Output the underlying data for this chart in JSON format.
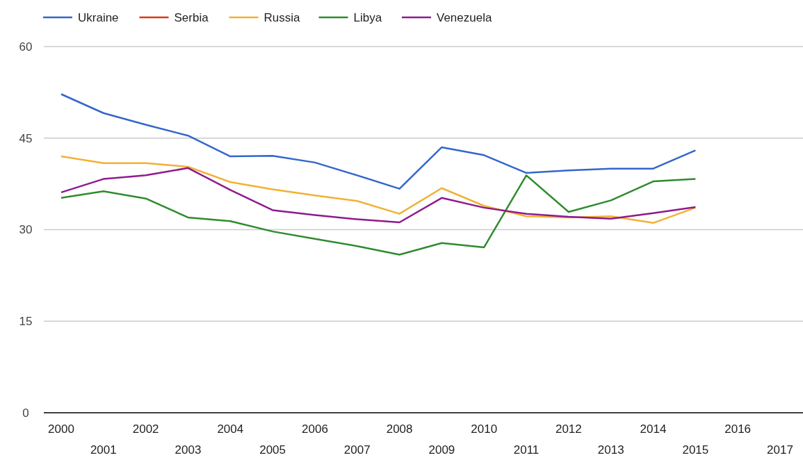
{
  "chart_data": {
    "type": "line",
    "categories": [
      "2000",
      "2001",
      "2002",
      "2003",
      "2004",
      "2005",
      "2006",
      "2007",
      "2008",
      "2009",
      "2010",
      "2011",
      "2012",
      "2013",
      "2014",
      "2015",
      "2016",
      "2017"
    ],
    "ylim": [
      0,
      60
    ],
    "yticks": [
      0,
      15,
      30,
      45,
      60
    ],
    "grid": "y",
    "legend": "top left",
    "line_style": "solid",
    "marker": "none",
    "series": [
      {
        "name": "Ukraine",
        "color": "#3366cc",
        "values": [
          52.2,
          49.1,
          47.2,
          45.4,
          42.0,
          42.1,
          41.0,
          38.9,
          36.7,
          43.5,
          42.2,
          39.3,
          39.7,
          40.0,
          40.0,
          43.0,
          null,
          null
        ]
      },
      {
        "name": "Serbia",
        "color": "#dc3912",
        "values": [
          null,
          null,
          null,
          null,
          null,
          null,
          null,
          null,
          null,
          null,
          null,
          null,
          null,
          null,
          null,
          null,
          null,
          null
        ]
      },
      {
        "name": "Russia",
        "color": "#f2b134",
        "values": [
          42.0,
          40.9,
          40.9,
          40.3,
          37.8,
          36.6,
          35.6,
          34.7,
          32.6,
          36.8,
          33.9,
          32.2,
          32.0,
          32.2,
          31.1,
          33.6,
          null,
          null
        ]
      },
      {
        "name": "Libya",
        "color": "#2e8b2e",
        "values": [
          35.2,
          36.3,
          35.1,
          32.0,
          31.4,
          29.7,
          28.5,
          27.3,
          25.9,
          27.8,
          27.1,
          38.9,
          32.9,
          34.8,
          37.9,
          38.3,
          null,
          null
        ]
      },
      {
        "name": "Venezuela",
        "color": "#8e1a8e",
        "values": [
          36.1,
          38.3,
          38.9,
          40.1,
          36.5,
          33.2,
          32.4,
          31.7,
          31.2,
          35.2,
          33.6,
          32.6,
          32.1,
          31.8,
          32.7,
          33.7,
          null,
          null
        ]
      }
    ]
  }
}
